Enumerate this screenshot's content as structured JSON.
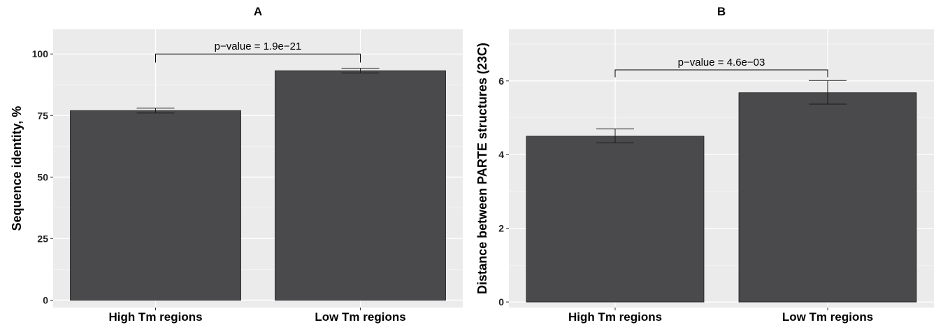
{
  "chart_data": [
    {
      "type": "bar",
      "title": "A",
      "xlabel": "",
      "ylabel": "Sequence identity, %",
      "categories": [
        "High Tm regions",
        "Low Tm regions"
      ],
      "values": [
        77.0,
        93.2
      ],
      "error": [
        [
          76.0,
          78.0
        ],
        [
          92.3,
          94.2
        ]
      ],
      "ylim": [
        -3,
        110
      ],
      "yticks": [
        0,
        25,
        50,
        75,
        100
      ],
      "ytick_labels": [
        "0",
        "25",
        "50",
        "75",
        "100"
      ],
      "annotation": "p−value = 1.9e−21",
      "bracket_top": 100,
      "bracket_drop": [
        96.5,
        96.5
      ],
      "grid": true,
      "bar_color": "#4a4a4c",
      "panel_background": "#ebebeb"
    },
    {
      "type": "bar",
      "title": "B",
      "xlabel": "",
      "ylabel": "Distance between PARTE structures (23C)",
      "categories": [
        "High Tm regions",
        "Low Tm regions"
      ],
      "values": [
        4.5,
        5.68
      ],
      "error": [
        [
          4.32,
          4.7
        ],
        [
          5.37,
          6.01
        ]
      ],
      "ylim": [
        -0.15,
        7.4
      ],
      "yticks": [
        0,
        2,
        4,
        6
      ],
      "ytick_labels": [
        "0",
        "2",
        "4",
        "6"
      ],
      "annotation": "p−value = 4.6e−03",
      "bracket_top": 6.3,
      "bracket_drop": [
        6.1,
        6.1
      ],
      "grid": true,
      "bar_color": "#4a4a4c",
      "panel_background": "#ebebeb"
    }
  ]
}
